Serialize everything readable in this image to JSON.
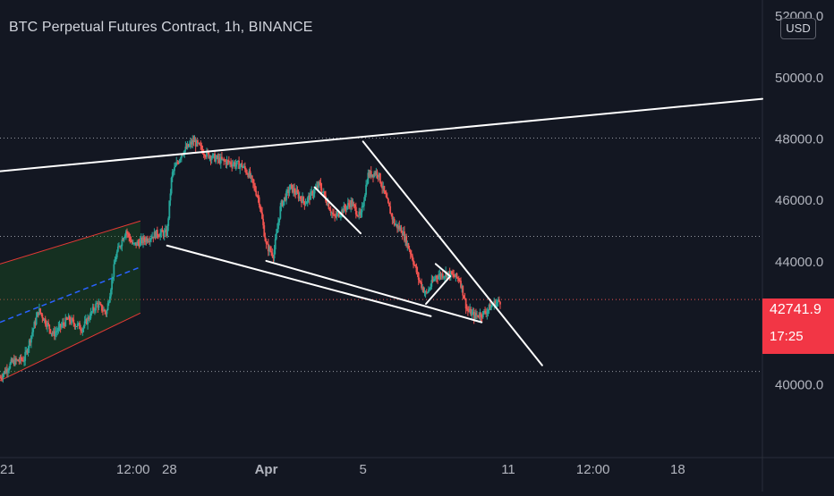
{
  "header": {
    "title": "BTC Perpetual Futures Contract, 1h, BINANCE"
  },
  "currency_button": "USD",
  "last_price": {
    "value": "42741.9",
    "countdown": "17:25",
    "color": "#f23645"
  },
  "colors": {
    "background": "#131722",
    "up": "#26a69a",
    "down": "#ef5350",
    "drawing": "#ffffff",
    "channel_border": "#e53935",
    "channel_fill": "#1b5e20",
    "channel_mid": "#2962ff"
  },
  "chart_data": {
    "type": "candlestick",
    "title": "BTC Perpetual Futures Contract, 1h, BINANCE",
    "y_axis": {
      "range": [
        38000,
        52500
      ],
      "tick_labels": [
        "52000.0",
        "50000.0",
        "48000.0",
        "46000.0",
        "44000.0",
        "42000.0",
        "40000.0"
      ],
      "ticks": [
        52000,
        50000,
        48000,
        46000,
        44000,
        42000,
        40000
      ]
    },
    "x_axis": {
      "tick_labels": [
        "21",
        "12:00",
        "28",
        "Apr",
        "5",
        "11",
        "12:00",
        "18"
      ],
      "ticks_day": [
        21,
        26.5,
        28,
        32,
        36,
        42,
        45.5,
        49
      ]
    },
    "x_range_day": [
      21,
      52.5
    ],
    "horizontal_dotted_levels": [
      48000,
      44800,
      40400
    ],
    "last_price_line": 42741.9,
    "price_path": [
      [
        21.0,
        40200
      ],
      [
        21.5,
        40700
      ],
      [
        22.0,
        40800
      ],
      [
        22.6,
        42400
      ],
      [
        23.2,
        41600
      ],
      [
        23.8,
        42100
      ],
      [
        24.4,
        41800
      ],
      [
        25.0,
        42600
      ],
      [
        25.4,
        42300
      ],
      [
        25.8,
        44200
      ],
      [
        26.2,
        45000
      ],
      [
        26.5,
        44500
      ],
      [
        27.0,
        44700
      ],
      [
        27.5,
        44900
      ],
      [
        27.9,
        44900
      ],
      [
        28.1,
        46800
      ],
      [
        28.5,
        47500
      ],
      [
        29.0,
        47900
      ],
      [
        29.5,
        47500
      ],
      [
        30.0,
        47300
      ],
      [
        30.5,
        47200
      ],
      [
        31.0,
        47100
      ],
      [
        31.3,
        46800
      ],
      [
        31.7,
        46000
      ],
      [
        32.0,
        44500
      ],
      [
        32.3,
        44200
      ],
      [
        32.6,
        45800
      ],
      [
        33.0,
        46400
      ],
      [
        33.6,
        45900
      ],
      [
        34.2,
        46500
      ],
      [
        34.8,
        45400
      ],
      [
        35.5,
        45900
      ],
      [
        35.9,
        45400
      ],
      [
        36.2,
        46800
      ],
      [
        36.6,
        46900
      ],
      [
        37.0,
        45900
      ],
      [
        37.3,
        45200
      ],
      [
        37.6,
        45000
      ],
      [
        38.0,
        44200
      ],
      [
        38.3,
        43400
      ],
      [
        38.6,
        42900
      ],
      [
        39.0,
        43500
      ],
      [
        39.5,
        43600
      ],
      [
        40.0,
        43400
      ],
      [
        40.3,
        42400
      ],
      [
        40.6,
        42200
      ],
      [
        41.0,
        42300
      ],
      [
        41.4,
        42600
      ],
      [
        41.7,
        42700
      ]
    ],
    "drawings": {
      "upper_trendline": [
        [
          21,
          46920
        ],
        [
          52.5,
          49280
        ]
      ],
      "lower_wedge_line_1": [
        [
          27.9,
          44500
        ],
        [
          38.8,
          42200
        ]
      ],
      "lower_wedge_line_2": [
        [
          32.0,
          44000
        ],
        [
          40.9,
          42000
        ]
      ],
      "falling_resistance": [
        [
          36.0,
          47890
        ],
        [
          43.4,
          40600
        ]
      ],
      "small_flag_left": [
        [
          34.0,
          46400
        ],
        [
          35.9,
          44900
        ]
      ],
      "small_flag_right": [
        [
          38.6,
          42600
        ],
        [
          39.6,
          43500
        ]
      ],
      "small_tick_mark": [
        [
          39.0,
          43900
        ],
        [
          39.6,
          43500
        ]
      ],
      "ascending_channel_upper": [
        [
          21,
          43900
        ],
        [
          26.8,
          45300
        ]
      ],
      "ascending_channel_lower": [
        [
          21,
          40100
        ],
        [
          26.8,
          42300
        ]
      ],
      "ascending_channel_mid": [
        [
          21,
          42000
        ],
        [
          26.8,
          43800
        ]
      ]
    }
  }
}
